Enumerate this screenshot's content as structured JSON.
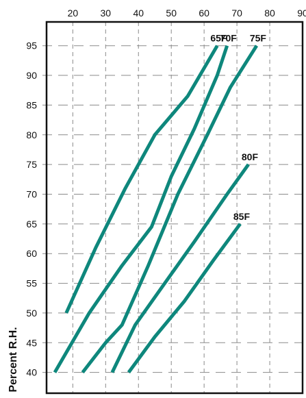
{
  "chart_data": {
    "type": "line",
    "title": "",
    "xlabel": "",
    "ylabel": "Percent R.H.",
    "xlim": [
      12,
      90
    ],
    "ylim": [
      36.5,
      99
    ],
    "x_ticks": [
      20,
      30,
      40,
      50,
      60,
      70,
      80,
      90
    ],
    "y_ticks": [
      40,
      45,
      50,
      55,
      60,
      65,
      70,
      75,
      80,
      85,
      90,
      95
    ],
    "x_axis_position": "top",
    "grid": true,
    "grid_style": "dashed",
    "line_color": "#0e877c",
    "series": [
      {
        "name": "65F",
        "points": [
          [
            18,
            50
          ],
          [
            27,
            61
          ],
          [
            36,
            71
          ],
          [
            45,
            80
          ],
          [
            55,
            86.5
          ],
          [
            64,
            95
          ]
        ]
      },
      {
        "name": "70F",
        "points": [
          [
            14.5,
            40
          ],
          [
            25,
            50
          ],
          [
            35,
            58
          ],
          [
            44,
            64.5
          ],
          [
            50,
            73
          ],
          [
            57,
            81
          ],
          [
            64,
            90
          ],
          [
            67,
            95
          ]
        ]
      },
      {
        "name": "75F",
        "points": [
          [
            23,
            40
          ],
          [
            30,
            45
          ],
          [
            35,
            48
          ],
          [
            43,
            58
          ],
          [
            52,
            70
          ],
          [
            61,
            80
          ],
          [
            68,
            88
          ],
          [
            76,
            95
          ]
        ]
      },
      {
        "name": "80F",
        "points": [
          [
            32,
            40
          ],
          [
            39,
            48
          ],
          [
            48,
            55
          ],
          [
            57,
            62
          ],
          [
            67,
            70
          ],
          [
            73.5,
            75
          ]
        ]
      },
      {
        "name": "85F",
        "points": [
          [
            37,
            40
          ],
          [
            45,
            46
          ],
          [
            54,
            52
          ],
          [
            63,
            59
          ],
          [
            71,
            65
          ]
        ]
      }
    ]
  }
}
